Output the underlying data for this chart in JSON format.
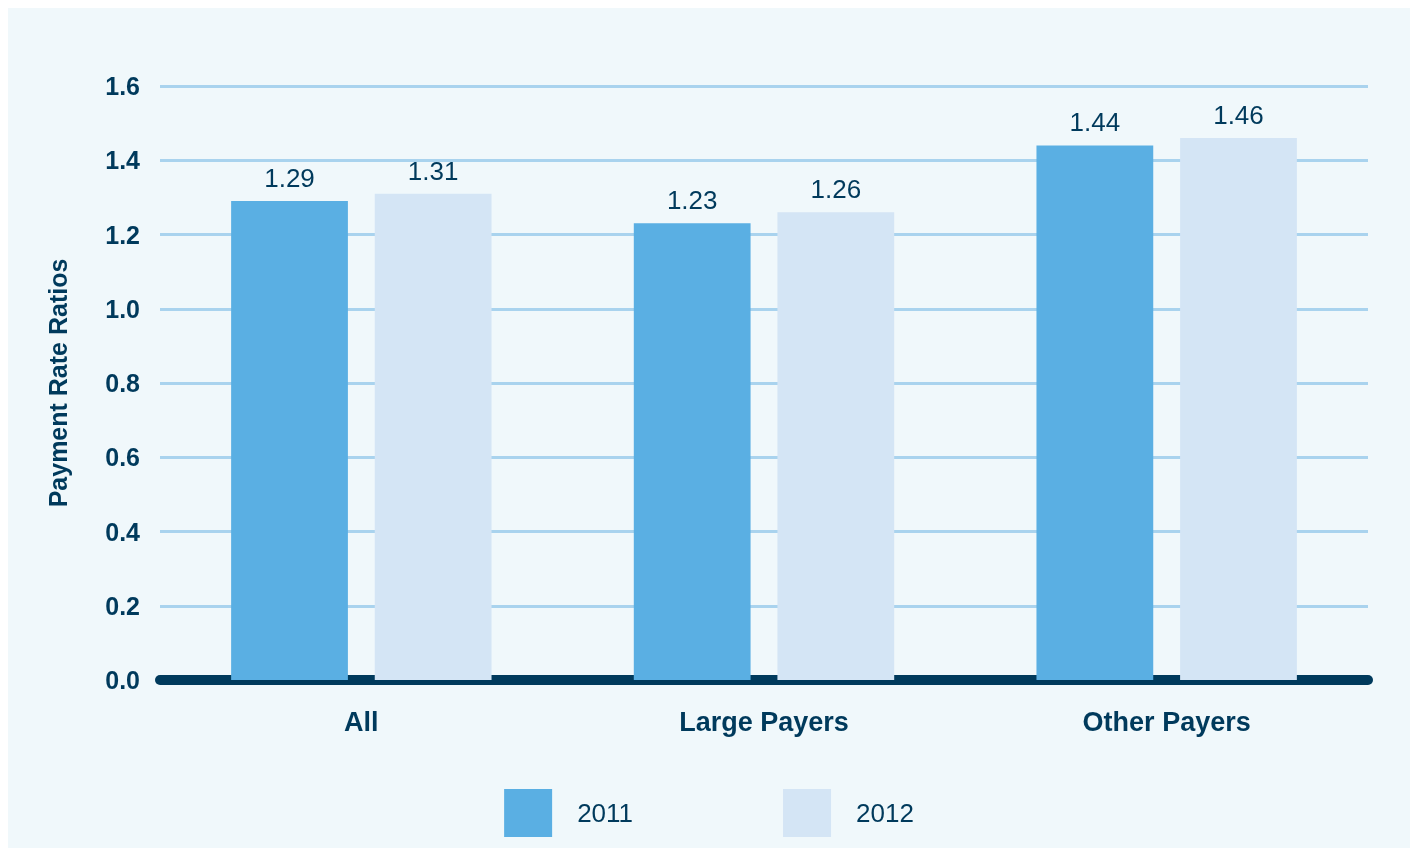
{
  "chart_data": {
    "type": "bar",
    "ylabel": "Payment Rate Ratios",
    "categories": [
      "All",
      "Large Payers",
      "Other Payers"
    ],
    "series": [
      {
        "name": "2011",
        "color": "#5aafe3",
        "values": [
          1.29,
          1.23,
          1.44
        ]
      },
      {
        "name": "2012",
        "color": "#d4e5f5",
        "values": [
          1.31,
          1.26,
          1.46
        ]
      }
    ],
    "ylim": [
      0,
      1.6
    ],
    "yticks": [
      {
        "value": 0,
        "label": "0.0"
      },
      {
        "value": 0.2,
        "label": "0.2"
      },
      {
        "value": 0.4,
        "label": "0.4"
      },
      {
        "value": 0.6,
        "label": "0.6"
      },
      {
        "value": 0.8,
        "label": "0.8"
      },
      {
        "value": 1,
        "label": "1.0"
      },
      {
        "value": 1.2,
        "label": "1.2"
      },
      {
        "value": 1.4,
        "label": "1.4"
      },
      {
        "value": 1.6,
        "label": "1.6"
      }
    ],
    "grid": "y",
    "legend": "bottom",
    "data_labels": true
  }
}
